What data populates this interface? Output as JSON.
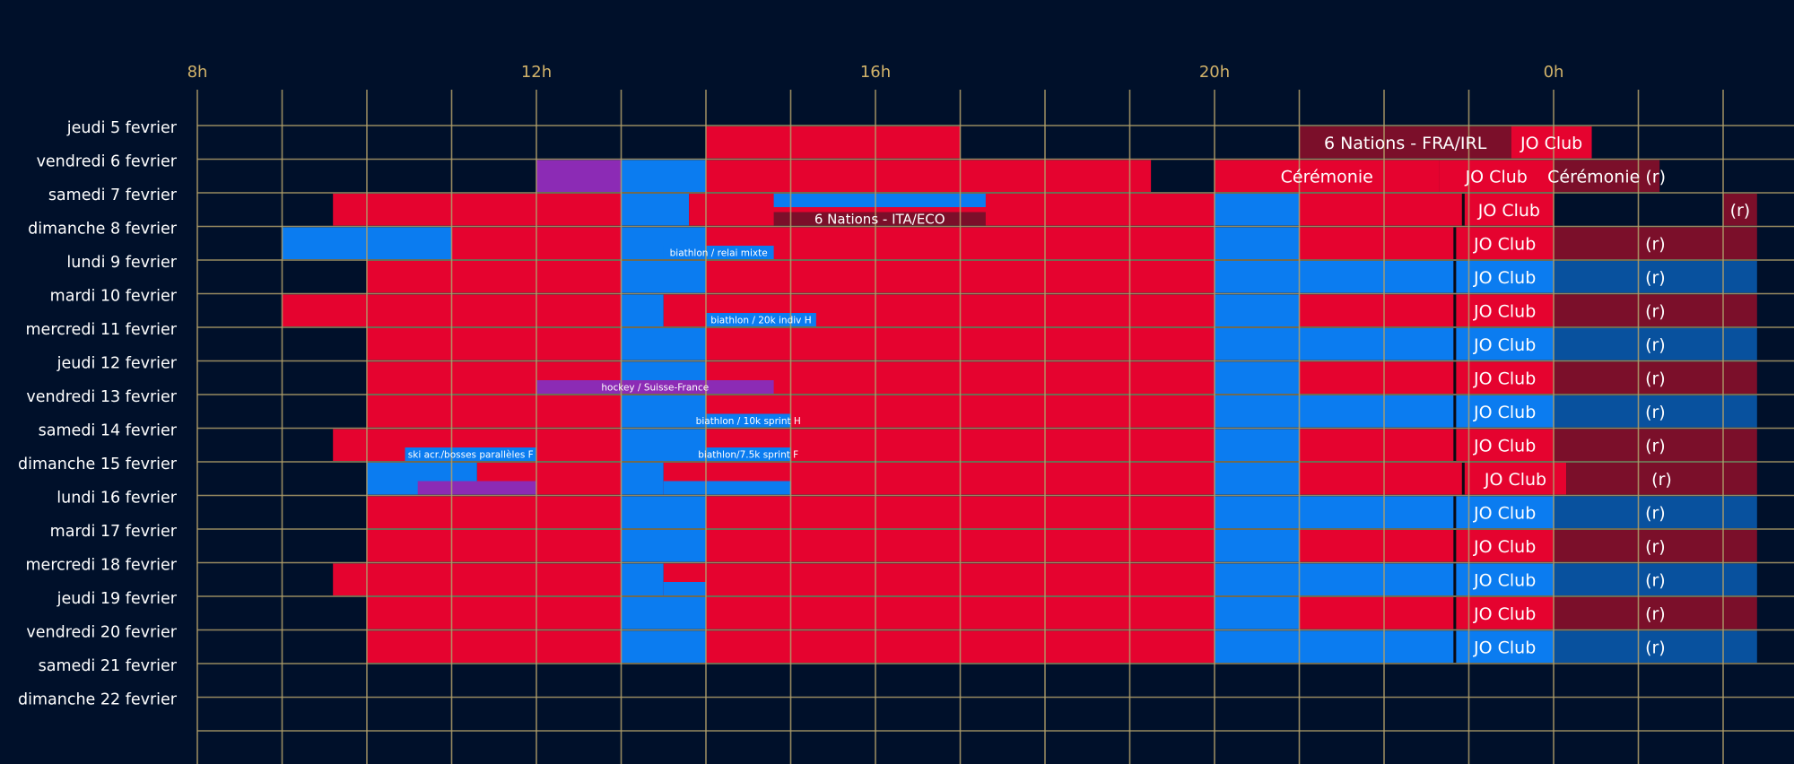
{
  "chart_data": {
    "type": "schedule",
    "x_axis": {
      "start_hour": 8,
      "end_hour": 26,
      "ticks": [
        {
          "hour": 8,
          "label": "8h"
        },
        {
          "hour": 12,
          "label": "12h"
        },
        {
          "hour": 16,
          "label": "16h"
        },
        {
          "hour": 20,
          "label": "20h"
        },
        {
          "hour": 24,
          "label": "0h"
        }
      ]
    },
    "colors": {
      "background": "#00102a",
      "grid": "#b09f6a",
      "tick_label": "#d2b36a",
      "day_label": "#ffffff",
      "red": "#e5032f",
      "blue": "#0b7cf0",
      "purple": "#8c2bb5",
      "dark_red": "#7b0f2a",
      "dark_blue": "#08519e",
      "divider": "#0a0a14"
    },
    "days": [
      "jeudi 5 fevrier",
      "vendredi 6 fevrier",
      "samedi 7 fevrier",
      "dimanche 8 fevrier",
      "lundi 9 fevrier",
      "mardi 10 fevrier",
      "mercredi 11 fevrier",
      "jeudi 12 fevrier",
      "vendredi 13 fevrier",
      "samedi 14 fevrier",
      "dimanche 15 fevrier",
      "lundi 16 fevrier",
      "mardi 17 fevrier",
      "mercredi 18 fevrier",
      "jeudi 19 fevrier",
      "vendredi 20 fevrier",
      "samedi 21 fevrier",
      "dimanche 22 fevrier"
    ],
    "blocks": [
      {
        "day": 0,
        "start": 14.0,
        "end": 17.0,
        "color": "red"
      },
      {
        "day": 0,
        "start": 21.0,
        "end": 23.5,
        "color": "dark_red",
        "label": "6 Nations - FRA/IRL"
      },
      {
        "day": 0,
        "start": 23.5,
        "end": 24.45,
        "color": "red",
        "label": "JO Club"
      },
      {
        "day": 1,
        "start": 12.0,
        "end": 13.0,
        "color": "purple"
      },
      {
        "day": 1,
        "start": 13.0,
        "end": 14.0,
        "color": "blue"
      },
      {
        "day": 1,
        "start": 14.0,
        "end": 19.25,
        "color": "red"
      },
      {
        "day": 1,
        "start": 20.0,
        "end": 22.65,
        "color": "red",
        "label": "Cérémonie"
      },
      {
        "day": 1,
        "start": 22.65,
        "end": 24.0,
        "color": "red",
        "label": "JO Club"
      },
      {
        "day": 1,
        "start": 24.0,
        "end": 25.25,
        "color": "dark_red",
        "label": "Cérémonie (r)"
      },
      {
        "day": 2,
        "start": 9.6,
        "end": 13.0,
        "color": "red"
      },
      {
        "day": 2,
        "start": 13.0,
        "end": 13.8,
        "color": "blue"
      },
      {
        "day": 2,
        "start": 13.8,
        "end": 20.0,
        "color": "red"
      },
      {
        "day": 2,
        "start": 20.0,
        "end": 21.0,
        "color": "blue"
      },
      {
        "day": 2,
        "start": 21.0,
        "end": 22.95,
        "color": "red"
      },
      {
        "day": 2,
        "start": 22.95,
        "end": 24.0,
        "color": "red",
        "label": "JO Club"
      },
      {
        "day": 2,
        "start": 26.0,
        "end": 26.4,
        "color": "dark_red",
        "label": "(r)"
      },
      {
        "day": 3,
        "start": 9.0,
        "end": 11.0,
        "color": "blue"
      },
      {
        "day": 3,
        "start": 11.0,
        "end": 13.0,
        "color": "red"
      },
      {
        "day": 3,
        "start": 13.0,
        "end": 14.0,
        "color": "blue"
      },
      {
        "day": 3,
        "start": 14.0,
        "end": 20.0,
        "color": "red"
      },
      {
        "day": 3,
        "start": 20.0,
        "end": 21.0,
        "color": "blue"
      },
      {
        "day": 3,
        "start": 21.0,
        "end": 22.85,
        "color": "red"
      },
      {
        "day": 3,
        "start": 22.85,
        "end": 24.0,
        "color": "red",
        "label": "JO Club"
      },
      {
        "day": 3,
        "start": 24.0,
        "end": 26.4,
        "color": "dark_red",
        "label": "(r)"
      },
      {
        "day": 4,
        "start": 10.0,
        "end": 13.0,
        "color": "red"
      },
      {
        "day": 4,
        "start": 13.0,
        "end": 14.0,
        "color": "blue"
      },
      {
        "day": 4,
        "start": 14.0,
        "end": 20.0,
        "color": "red"
      },
      {
        "day": 4,
        "start": 20.0,
        "end": 22.85,
        "color": "blue"
      },
      {
        "day": 4,
        "start": 22.85,
        "end": 24.0,
        "color": "blue",
        "label": "JO Club"
      },
      {
        "day": 4,
        "start": 24.0,
        "end": 26.4,
        "color": "dark_blue",
        "label": "(r)"
      },
      {
        "day": 5,
        "start": 9.0,
        "end": 13.0,
        "color": "red"
      },
      {
        "day": 5,
        "start": 13.0,
        "end": 13.5,
        "color": "blue"
      },
      {
        "day": 5,
        "start": 13.5,
        "end": 20.0,
        "color": "red"
      },
      {
        "day": 5,
        "start": 20.0,
        "end": 21.0,
        "color": "blue"
      },
      {
        "day": 5,
        "start": 21.0,
        "end": 22.85,
        "color": "red"
      },
      {
        "day": 5,
        "start": 22.85,
        "end": 24.0,
        "color": "red",
        "label": "JO Club"
      },
      {
        "day": 5,
        "start": 24.0,
        "end": 26.4,
        "color": "dark_red",
        "label": "(r)"
      },
      {
        "day": 6,
        "start": 10.0,
        "end": 13.0,
        "color": "red"
      },
      {
        "day": 6,
        "start": 13.0,
        "end": 14.0,
        "color": "blue"
      },
      {
        "day": 6,
        "start": 14.0,
        "end": 20.0,
        "color": "red"
      },
      {
        "day": 6,
        "start": 20.0,
        "end": 22.85,
        "color": "blue"
      },
      {
        "day": 6,
        "start": 22.85,
        "end": 24.0,
        "color": "blue",
        "label": "JO Club"
      },
      {
        "day": 6,
        "start": 24.0,
        "end": 26.4,
        "color": "dark_blue",
        "label": "(r)"
      },
      {
        "day": 7,
        "start": 10.0,
        "end": 13.0,
        "color": "red"
      },
      {
        "day": 7,
        "start": 13.0,
        "end": 14.0,
        "color": "blue"
      },
      {
        "day": 7,
        "start": 14.0,
        "end": 20.0,
        "color": "red"
      },
      {
        "day": 7,
        "start": 20.0,
        "end": 21.0,
        "color": "blue"
      },
      {
        "day": 7,
        "start": 21.0,
        "end": 22.85,
        "color": "red"
      },
      {
        "day": 7,
        "start": 22.85,
        "end": 24.0,
        "color": "red",
        "label": "JO Club"
      },
      {
        "day": 7,
        "start": 24.0,
        "end": 26.4,
        "color": "dark_red",
        "label": "(r)"
      },
      {
        "day": 8,
        "start": 10.0,
        "end": 13.0,
        "color": "red"
      },
      {
        "day": 8,
        "start": 13.0,
        "end": 14.0,
        "color": "blue"
      },
      {
        "day": 8,
        "start": 14.0,
        "end": 20.0,
        "color": "red"
      },
      {
        "day": 8,
        "start": 20.0,
        "end": 22.85,
        "color": "blue"
      },
      {
        "day": 8,
        "start": 22.85,
        "end": 24.0,
        "color": "blue",
        "label": "JO Club"
      },
      {
        "day": 8,
        "start": 24.0,
        "end": 26.4,
        "color": "dark_blue",
        "label": "(r)"
      },
      {
        "day": 9,
        "start": 9.6,
        "end": 13.0,
        "color": "red"
      },
      {
        "day": 9,
        "start": 13.0,
        "end": 14.0,
        "color": "blue"
      },
      {
        "day": 9,
        "start": 14.0,
        "end": 20.0,
        "color": "red"
      },
      {
        "day": 9,
        "start": 20.0,
        "end": 21.0,
        "color": "blue"
      },
      {
        "day": 9,
        "start": 21.0,
        "end": 22.85,
        "color": "red"
      },
      {
        "day": 9,
        "start": 22.85,
        "end": 24.0,
        "color": "red",
        "label": "JO Club"
      },
      {
        "day": 9,
        "start": 24.0,
        "end": 26.4,
        "color": "dark_red",
        "label": "(r)"
      },
      {
        "day": 10,
        "start": 10.0,
        "end": 11.3,
        "color": "blue"
      },
      {
        "day": 10,
        "start": 11.3,
        "end": 13.0,
        "color": "red"
      },
      {
        "day": 10,
        "start": 13.0,
        "end": 13.5,
        "color": "blue"
      },
      {
        "day": 10,
        "start": 13.5,
        "end": 20.0,
        "color": "red"
      },
      {
        "day": 10,
        "start": 20.0,
        "end": 21.0,
        "color": "blue"
      },
      {
        "day": 10,
        "start": 21.0,
        "end": 22.95,
        "color": "red"
      },
      {
        "day": 10,
        "start": 22.95,
        "end": 24.15,
        "color": "red",
        "label": "JO Club"
      },
      {
        "day": 10,
        "start": 24.15,
        "end": 26.4,
        "color": "dark_red",
        "label": "(r)"
      },
      {
        "day": 11,
        "start": 10.0,
        "end": 13.0,
        "color": "red"
      },
      {
        "day": 11,
        "start": 13.0,
        "end": 14.0,
        "color": "blue"
      },
      {
        "day": 11,
        "start": 14.0,
        "end": 20.0,
        "color": "red"
      },
      {
        "day": 11,
        "start": 20.0,
        "end": 22.85,
        "color": "blue"
      },
      {
        "day": 11,
        "start": 22.85,
        "end": 24.0,
        "color": "blue",
        "label": "JO Club"
      },
      {
        "day": 11,
        "start": 24.0,
        "end": 26.4,
        "color": "dark_blue",
        "label": "(r)"
      },
      {
        "day": 12,
        "start": 10.0,
        "end": 13.0,
        "color": "red"
      },
      {
        "day": 12,
        "start": 13.0,
        "end": 14.0,
        "color": "blue"
      },
      {
        "day": 12,
        "start": 14.0,
        "end": 20.0,
        "color": "red"
      },
      {
        "day": 12,
        "start": 20.0,
        "end": 21.0,
        "color": "blue"
      },
      {
        "day": 12,
        "start": 21.0,
        "end": 22.85,
        "color": "red"
      },
      {
        "day": 12,
        "start": 22.85,
        "end": 24.0,
        "color": "red",
        "label": "JO Club"
      },
      {
        "day": 12,
        "start": 24.0,
        "end": 26.4,
        "color": "dark_red",
        "label": "(r)"
      },
      {
        "day": 13,
        "start": 9.6,
        "end": 13.0,
        "color": "red"
      },
      {
        "day": 13,
        "start": 13.0,
        "end": 13.5,
        "color": "blue"
      },
      {
        "day": 13,
        "start": 13.5,
        "end": 20.0,
        "color": "red"
      },
      {
        "day": 13,
        "start": 20.0,
        "end": 22.85,
        "color": "blue"
      },
      {
        "day": 13,
        "start": 22.85,
        "end": 24.0,
        "color": "blue",
        "label": "JO Club"
      },
      {
        "day": 13,
        "start": 24.0,
        "end": 26.4,
        "color": "dark_blue",
        "label": "(r)"
      },
      {
        "day": 14,
        "start": 10.0,
        "end": 13.0,
        "color": "red"
      },
      {
        "day": 14,
        "start": 13.0,
        "end": 14.0,
        "color": "blue"
      },
      {
        "day": 14,
        "start": 14.0,
        "end": 20.0,
        "color": "red"
      },
      {
        "day": 14,
        "start": 20.0,
        "end": 21.0,
        "color": "blue"
      },
      {
        "day": 14,
        "start": 21.0,
        "end": 22.85,
        "color": "red"
      },
      {
        "day": 14,
        "start": 22.85,
        "end": 24.0,
        "color": "red",
        "label": "JO Club"
      },
      {
        "day": 14,
        "start": 24.0,
        "end": 26.4,
        "color": "dark_red",
        "label": "(r)"
      },
      {
        "day": 15,
        "start": 10.0,
        "end": 13.0,
        "color": "red"
      },
      {
        "day": 15,
        "start": 13.0,
        "end": 14.0,
        "color": "blue"
      },
      {
        "day": 15,
        "start": 14.0,
        "end": 20.0,
        "color": "red"
      },
      {
        "day": 15,
        "start": 20.0,
        "end": 22.85,
        "color": "blue"
      },
      {
        "day": 15,
        "start": 22.85,
        "end": 24.0,
        "color": "blue",
        "label": "JO Club"
      },
      {
        "day": 15,
        "start": 24.0,
        "end": 26.4,
        "color": "dark_blue",
        "label": "(r)"
      }
    ],
    "overlays": [
      {
        "day": 2,
        "start": 14.8,
        "end": 17.3,
        "color": "blue",
        "part": "top"
      },
      {
        "day": 2,
        "start": 14.8,
        "end": 17.3,
        "color": "dark_red",
        "part": "bottom",
        "label": "6 Nations - ITA/ECO"
      },
      {
        "day": 3,
        "start": 13.5,
        "end": 14.8,
        "color": "blue",
        "part": "bottom",
        "label": "biathlon / relai mixte"
      },
      {
        "day": 5,
        "start": 14.0,
        "end": 15.3,
        "color": "blue",
        "part": "bottom",
        "label": "biathlon / 20k indiv H"
      },
      {
        "day": 7,
        "start": 12.0,
        "end": 14.8,
        "color": "purple",
        "part": "bottom",
        "label": "hockey / Suisse-France"
      },
      {
        "day": 8,
        "start": 14.0,
        "end": 15.0,
        "color": "blue",
        "part": "bottom",
        "label": "biathlon / 10k sprint H"
      },
      {
        "day": 9,
        "start": 10.45,
        "end": 12.0,
        "color": "blue",
        "part": "bottom",
        "label": "ski acr./bosses parallèles F"
      },
      {
        "day": 9,
        "start": 14.0,
        "end": 15.0,
        "color": "blue",
        "part": "bottom",
        "label": "biathlon/7.5k sprint F"
      },
      {
        "day": 10,
        "start": 10.6,
        "end": 12.0,
        "color": "purple",
        "part": "bottom"
      },
      {
        "day": 10,
        "start": 13.5,
        "end": 15.0,
        "color": "blue",
        "part": "bottom"
      },
      {
        "day": 13,
        "start": 13.5,
        "end": 14.0,
        "color": "blue",
        "part": "bottom"
      }
    ]
  }
}
